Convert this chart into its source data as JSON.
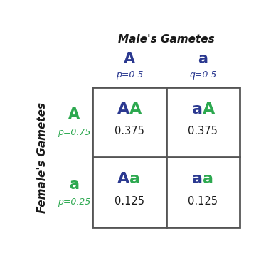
{
  "title": "Male's Gametes",
  "ylabel": "Female's Gametes",
  "male_alleles": [
    "A",
    "a"
  ],
  "male_probs": [
    "p=0.5",
    "q=0.5"
  ],
  "female_alleles": [
    "A",
    "a"
  ],
  "female_probs": [
    "p=0.75",
    "p=0.25"
  ],
  "cell_genotypes": [
    [
      "AA",
      "aA"
    ],
    [
      "Aa",
      "aa"
    ]
  ],
  "cell_values": [
    [
      "0.375",
      "0.375"
    ],
    [
      "0.125",
      "0.125"
    ]
  ],
  "genotype_chars": [
    [
      [
        "A",
        "A"
      ],
      [
        "a",
        "A"
      ]
    ],
    [
      [
        "A",
        "a"
      ],
      [
        "a",
        "a"
      ]
    ]
  ],
  "genotype_colors": [
    [
      [
        "#2b3990",
        "#2ca84f"
      ],
      [
        "#2b3990",
        "#2ca84f"
      ]
    ],
    [
      [
        "#2b3990",
        "#2ca84f"
      ],
      [
        "#2b3990",
        "#2ca84f"
      ]
    ]
  ],
  "blue_color": "#2b3990",
  "green_color": "#2ca84f",
  "black_color": "#1a1a1a",
  "grid_color": "#555555",
  "background": "#ffffff",
  "fig_width": 3.81,
  "fig_height": 3.66,
  "dpi": 100
}
